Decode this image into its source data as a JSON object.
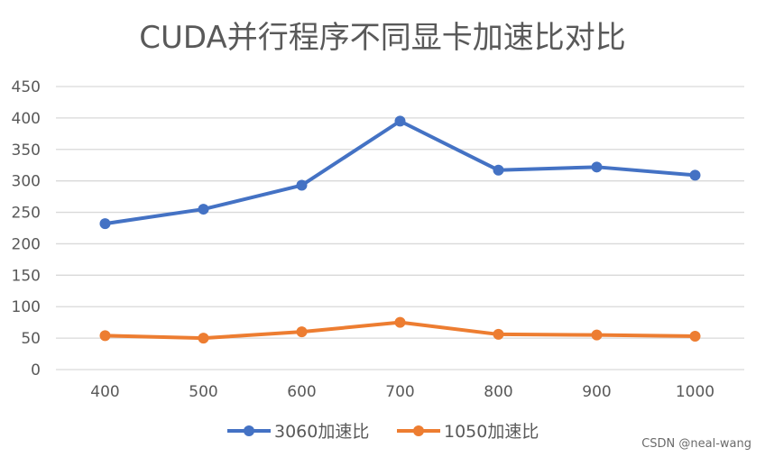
{
  "chart_data": {
    "type": "line",
    "title": "CUDA并行程序不同显卡加速比对比",
    "categories": [
      "400",
      "500",
      "600",
      "700",
      "800",
      "900",
      "1000"
    ],
    "series": [
      {
        "name": "3060加速比",
        "color": "#4472C4",
        "values": [
          232,
          255,
          293,
          395,
          317,
          322,
          309
        ]
      },
      {
        "name": "1050加速比",
        "color": "#ED7D31",
        "values": [
          54,
          50,
          60,
          75,
          56,
          55,
          53
        ]
      }
    ],
    "xlabel": "",
    "ylabel": "",
    "ylim": [
      0,
      450
    ],
    "yticks": [
      "0",
      "50",
      "100",
      "150",
      "200",
      "250",
      "300",
      "350",
      "400",
      "450"
    ],
    "grid": true,
    "legend": "bottom-center"
  },
  "watermark": "CSDN @neal-wang"
}
